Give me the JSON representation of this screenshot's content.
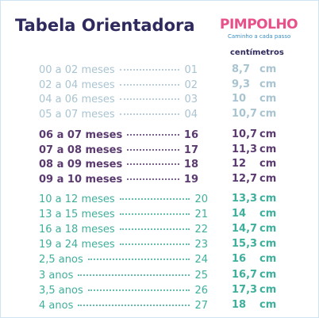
{
  "header": {
    "title": "Tabela Orientadora",
    "logo": "PIMPOLHO",
    "slogan": "Caminho a cada passo",
    "unit_heading": "centímetros"
  },
  "groups": [
    {
      "rows": [
        [
          "00 a 02 meses",
          "01",
          "8,7",
          "cm"
        ],
        [
          "02 a 04 meses",
          "02",
          "9,3",
          "cm"
        ],
        [
          "04 a 06 meses",
          "03",
          "10",
          "cm"
        ],
        [
          "05 a 07 meses",
          "04",
          "10,7",
          "cm"
        ]
      ]
    },
    {
      "rows": [
        [
          "06 a 07 meses",
          "16",
          "10,7",
          "cm"
        ],
        [
          "07 a 08 meses",
          "17",
          "11,3",
          "cm"
        ],
        [
          "08 a 09 meses",
          "18",
          "12",
          "cm"
        ],
        [
          "09 a 10 meses",
          "19",
          "12,7",
          "cm"
        ]
      ]
    },
    {
      "rows": [
        [
          "10 a 12 meses",
          "20",
          "13,3",
          "cm"
        ],
        [
          "13 a 15 meses",
          "21",
          "14",
          "cm"
        ],
        [
          "16 a 18 meses",
          "22",
          "14,7",
          "cm"
        ],
        [
          "19 a 24 meses",
          "23",
          "15,3",
          "cm"
        ],
        [
          "2,5 anos",
          "24",
          "16",
          "cm"
        ],
        [
          "3 anos",
          "25",
          "16,7",
          "cm"
        ],
        [
          "3,5 anos",
          "26",
          "17,3",
          "cm"
        ],
        [
          "4 anos",
          "27",
          "18",
          "cm"
        ]
      ]
    }
  ]
}
